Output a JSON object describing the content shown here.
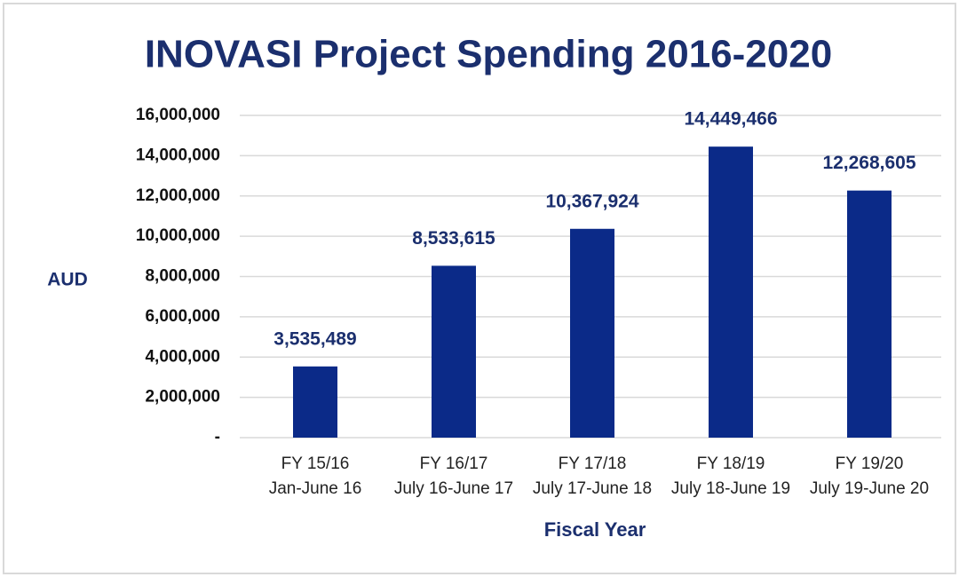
{
  "chart_data": {
    "type": "bar",
    "title": "INOVASI Project Spending 2016-2020",
    "x_label": "Fiscal Year",
    "y_label": "AUD",
    "categories": [
      "FY 15/16\nJan-June 16",
      "FY 16/17\nJuly 16-June 17",
      "FY 17/18\nJuly 17-June 18",
      "FY 18/19\nJuly 18-June 19",
      "FY 19/20\nJuly 19-June 20"
    ],
    "values": [
      3535489,
      8533615,
      10367924,
      14449466,
      12268605
    ],
    "value_labels": [
      "3,535,489",
      "8,533,615",
      "10,367,924",
      "14,449,466",
      "12,268,605"
    ],
    "color": "#0b2a88",
    "ylim": [
      0,
      16000000
    ],
    "yticks": [
      {
        "value": 0,
        "label": "-"
      },
      {
        "value": 2000000,
        "label": "2,000,000"
      },
      {
        "value": 4000000,
        "label": "4,000,000"
      },
      {
        "value": 6000000,
        "label": "6,000,000"
      },
      {
        "value": 8000000,
        "label": "8,000,000"
      },
      {
        "value": 10000000,
        "label": "10,000,000"
      },
      {
        "value": 12000000,
        "label": "12,000,000"
      },
      {
        "value": 14000000,
        "label": "14,000,000"
      },
      {
        "value": 16000000,
        "label": "16,000,000"
      }
    ],
    "grid": true
  }
}
